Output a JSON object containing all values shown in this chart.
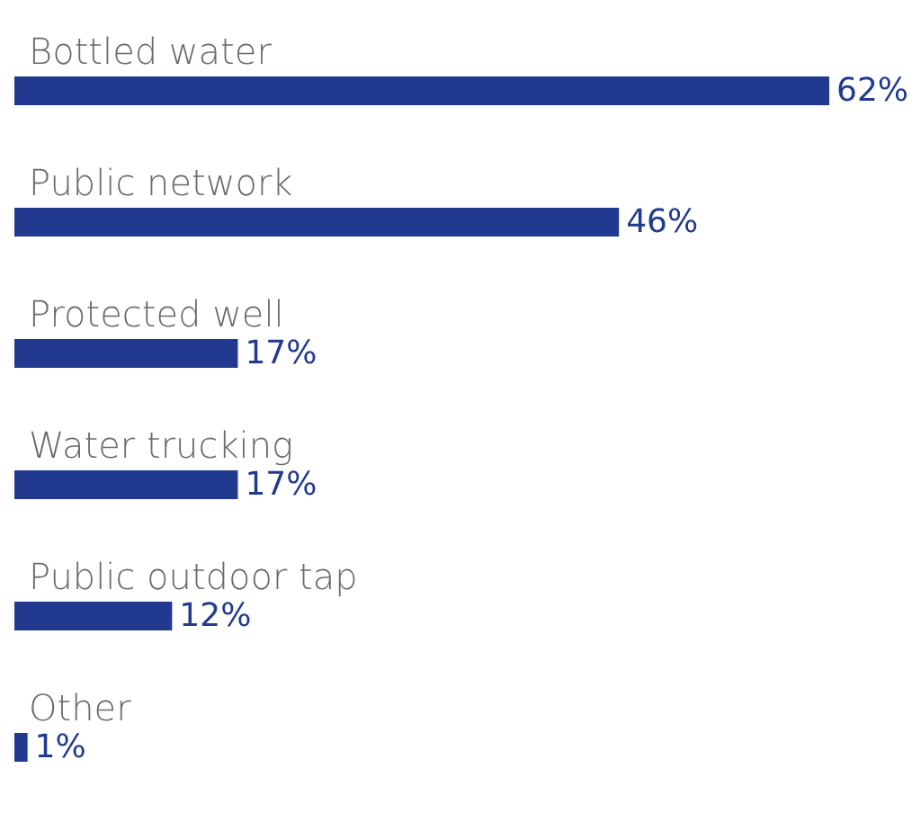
{
  "chart_data": {
    "type": "bar",
    "orientation": "horizontal",
    "categories": [
      "Bottled water",
      "Public network",
      "Protected well",
      "Water trucking",
      "Public outdoor tap",
      "Other"
    ],
    "values": [
      62,
      46,
      17,
      17,
      12,
      1
    ],
    "value_labels": [
      "62%",
      "46%",
      "17%",
      "17%",
      "12%",
      "1%"
    ],
    "color": "#213a8f"
  }
}
